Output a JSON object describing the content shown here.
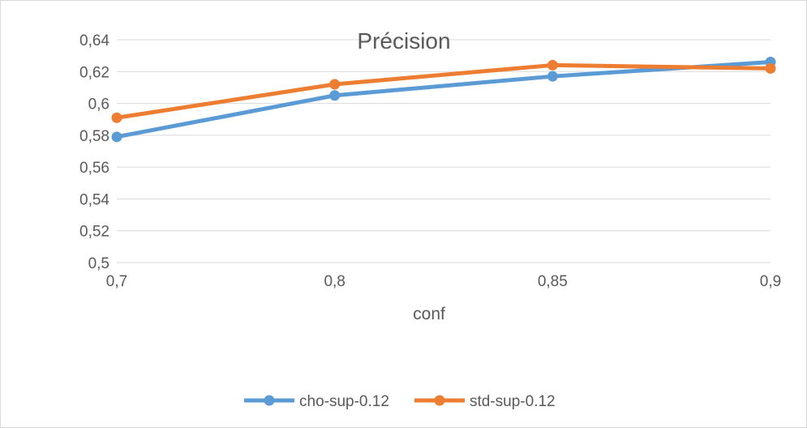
{
  "chart_data": {
    "type": "line",
    "title": "Précision",
    "xlabel": "conf",
    "ylabel": "",
    "categories": [
      "0,7",
      "0,8",
      "0,85",
      "0,9"
    ],
    "ylim": [
      0.5,
      0.64
    ],
    "ytick_labels": [
      "0,5",
      "0,52",
      "0,54",
      "0,56",
      "0,58",
      "0,6",
      "0,62",
      "0,64"
    ],
    "grid": true,
    "legend_position": "bottom",
    "series": [
      {
        "name": "cho-sup-0.12",
        "color": "#5b9bd5",
        "values": [
          0.579,
          0.605,
          0.617,
          0.626
        ]
      },
      {
        "name": "std-sup-0.12",
        "color": "#ed7d31",
        "values": [
          0.591,
          0.612,
          0.624,
          0.622
        ]
      }
    ]
  }
}
